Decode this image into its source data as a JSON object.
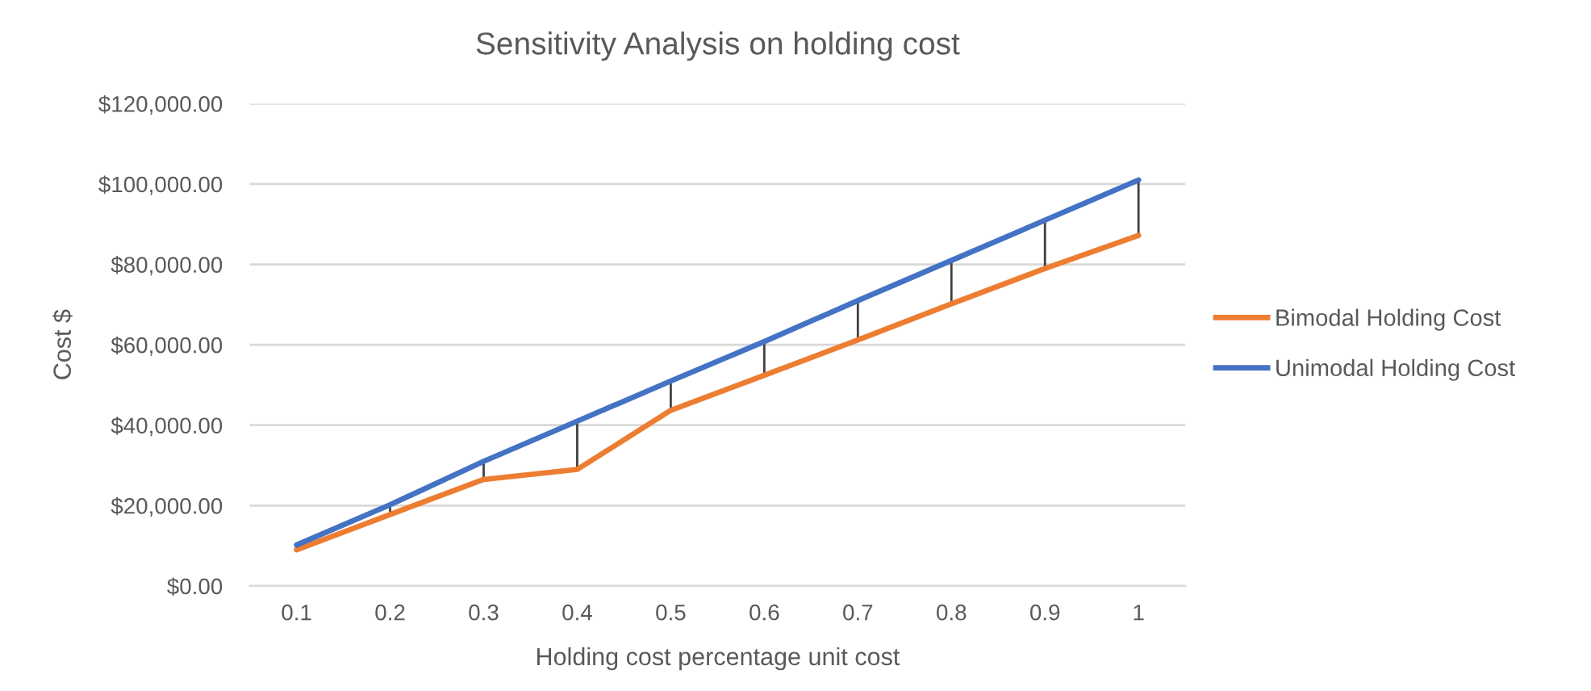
{
  "chart_data": {
    "type": "line",
    "title": "Sensitivity Analysis on holding cost",
    "xlabel": "Holding cost percentage unit cost",
    "ylabel": "Cost $",
    "categories": [
      "0.1",
      "0.2",
      "0.3",
      "0.4",
      "0.5",
      "0.6",
      "0.7",
      "0.8",
      "0.9",
      "1"
    ],
    "series": [
      {
        "name": "Bimodal Holding Cost",
        "color": "#ed7d31",
        "values": [
          9000,
          17800,
          26500,
          29000,
          43700,
          52400,
          61200,
          70200,
          79000,
          87200
        ],
        "errors": [
          [
            9000,
            10200
          ],
          [
            17800,
            20200
          ],
          [
            26500,
            31000
          ],
          [
            29000,
            41000
          ],
          [
            43700,
            51000
          ],
          [
            52400,
            60800
          ],
          [
            61200,
            71000
          ],
          [
            70200,
            81000
          ],
          [
            79000,
            91000
          ],
          [
            87200,
            101000
          ]
        ]
      },
      {
        "name": "Unimodal Holding Cost",
        "color": "#4472c4",
        "values": [
          10200,
          20200,
          31000,
          41000,
          51000,
          60800,
          71000,
          81000,
          91000,
          101000
        ]
      }
    ],
    "ylim": [
      0,
      120000
    ],
    "yticks": [
      {
        "value": 0,
        "label": "$0.00"
      },
      {
        "value": 20000,
        "label": "$20,000.00"
      },
      {
        "value": 40000,
        "label": "$40,000.00"
      },
      {
        "value": 60000,
        "label": "$60,000.00"
      },
      {
        "value": 80000,
        "label": "$80,000.00"
      },
      {
        "value": 100000,
        "label": "$100,000.00"
      },
      {
        "value": 120000,
        "label": "$120,000.00"
      }
    ],
    "grid": "y",
    "legend": "right",
    "marker": "none",
    "line_style": "solid"
  }
}
